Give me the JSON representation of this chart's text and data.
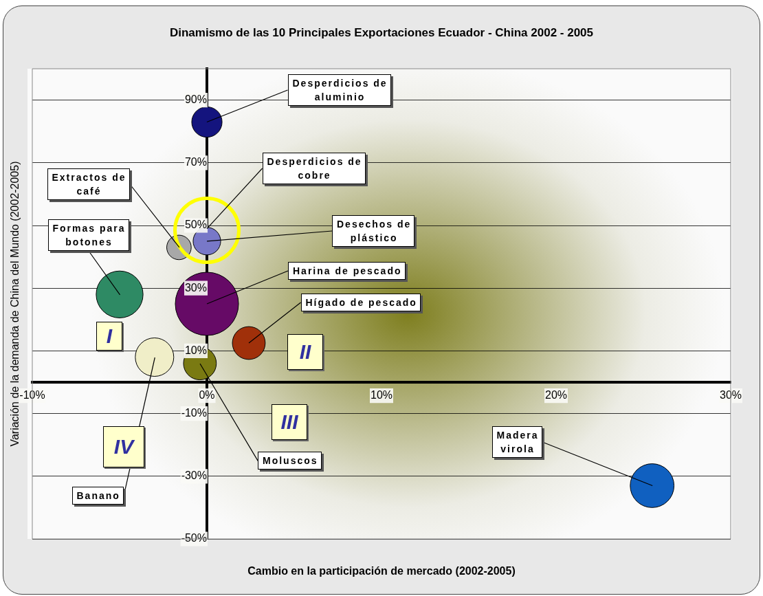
{
  "chart_data": {
    "type": "bubble",
    "title": "Dinamismo de las 10 Principales Exportaciones Ecuador - China 2002 - 2005",
    "xlabel": "Cambio en la participación de mercado (2002-2005)",
    "ylabel": "Variación de la demanda de China del Mundo (2002-2005)",
    "x": [
      0,
      0,
      -1.6,
      -5,
      0,
      2.4,
      -0.4,
      -3,
      25.5
    ],
    "values": [
      83,
      45,
      43,
      28,
      25,
      12.5,
      6,
      8,
      -33
    ],
    "sizes": [
      0.23,
      0.19,
      0.15,
      0.55,
      1,
      0.27,
      0.27,
      0.37,
      0.48
    ],
    "colors": [
      "#14147e",
      "#7878c8",
      "#a8a8a8",
      "#2e8a64",
      "#660a66",
      "#a0300a",
      "#7a7a12",
      "#f0eec8",
      "#1060c0"
    ],
    "xlim": [
      -10,
      30
    ],
    "ylim": [
      -50,
      100
    ],
    "xticks": [
      {
        "value": -10,
        "label": "-10%"
      },
      {
        "value": 0,
        "label": "0%"
      },
      {
        "value": 10,
        "label": "10%"
      },
      {
        "value": 20,
        "label": "20%"
      },
      {
        "value": 30,
        "label": "30%"
      }
    ],
    "yticks": [
      {
        "value": -50,
        "label": "-50%"
      },
      {
        "value": -30,
        "label": "-30%"
      },
      {
        "value": -10,
        "label": "-10%"
      },
      {
        "value": 10,
        "label": "10%"
      },
      {
        "value": 30,
        "label": "30%"
      },
      {
        "value": 50,
        "label": "50%"
      },
      {
        "value": 70,
        "label": "70%"
      },
      {
        "value": 90,
        "label": "90%"
      }
    ],
    "grid": "y",
    "legend": false,
    "annotations": [
      {
        "text": "Desperdicios de aluminio",
        "x": 0,
        "y": 83
      },
      {
        "text": "Desperdicios de cobre",
        "x": 0,
        "y": 49
      },
      {
        "text": "Extractos de café",
        "x": -1.6,
        "y": 43
      },
      {
        "text": "Formas para botones",
        "x": -5,
        "y": 28
      },
      {
        "text": "Desechos de plástico",
        "x": 0,
        "y": 45
      },
      {
        "text": "Harina de pescado",
        "x": 0,
        "y": 25
      },
      {
        "text": "Hígado de pescado",
        "x": 2.4,
        "y": 12.5
      },
      {
        "text": "Moluscos",
        "x": -0.4,
        "y": 6
      },
      {
        "text": "Banano",
        "x": -3,
        "y": 8
      },
      {
        "text": "Madera virola",
        "x": 25.5,
        "y": -33
      },
      "I",
      "II",
      "III",
      "IV"
    ]
  }
}
